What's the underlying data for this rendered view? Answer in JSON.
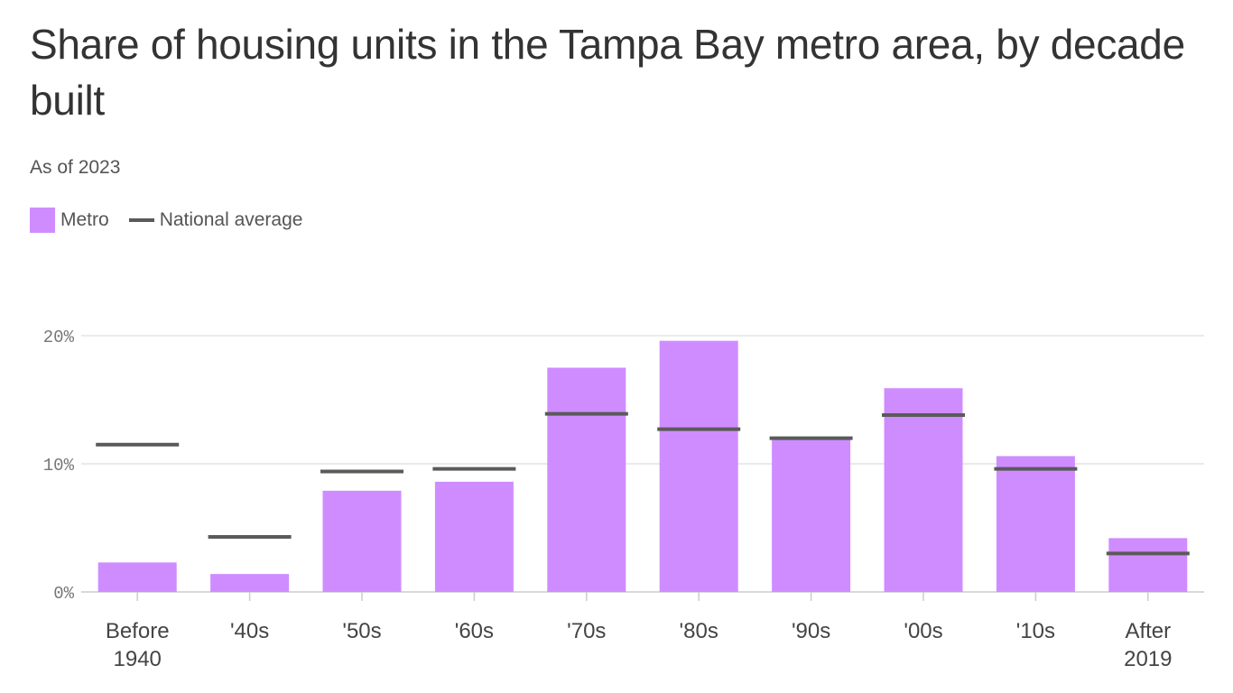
{
  "chart_data": {
    "type": "bar",
    "title": "Share of housing units in the Tampa Bay metro area, by decade built",
    "subtitle": "As of 2023",
    "categories": [
      [
        "Before",
        "1940"
      ],
      [
        "'40s"
      ],
      [
        "'50s"
      ],
      [
        "'60s"
      ],
      [
        "'70s"
      ],
      [
        "'80s"
      ],
      [
        "'90s"
      ],
      [
        "'00s"
      ],
      [
        "'10s"
      ],
      [
        "After",
        "2019"
      ]
    ],
    "series": [
      {
        "name": "Metro",
        "kind": "bar",
        "color": "#cf8cff",
        "values": [
          2.3,
          1.4,
          7.9,
          8.6,
          17.5,
          19.6,
          11.9,
          15.9,
          10.6,
          4.2
        ]
      },
      {
        "name": "National average",
        "kind": "marker-line",
        "color": "#5a5a5a",
        "values": [
          11.5,
          4.3,
          9.4,
          9.6,
          13.9,
          12.7,
          12.0,
          13.8,
          9.6,
          3.0
        ]
      }
    ],
    "yticks": [
      0,
      10,
      20
    ],
    "ytick_labels": [
      "0%",
      "10%",
      "20%"
    ],
    "ylim": [
      0,
      20
    ],
    "grid": true,
    "legend_placement": "top-left"
  }
}
